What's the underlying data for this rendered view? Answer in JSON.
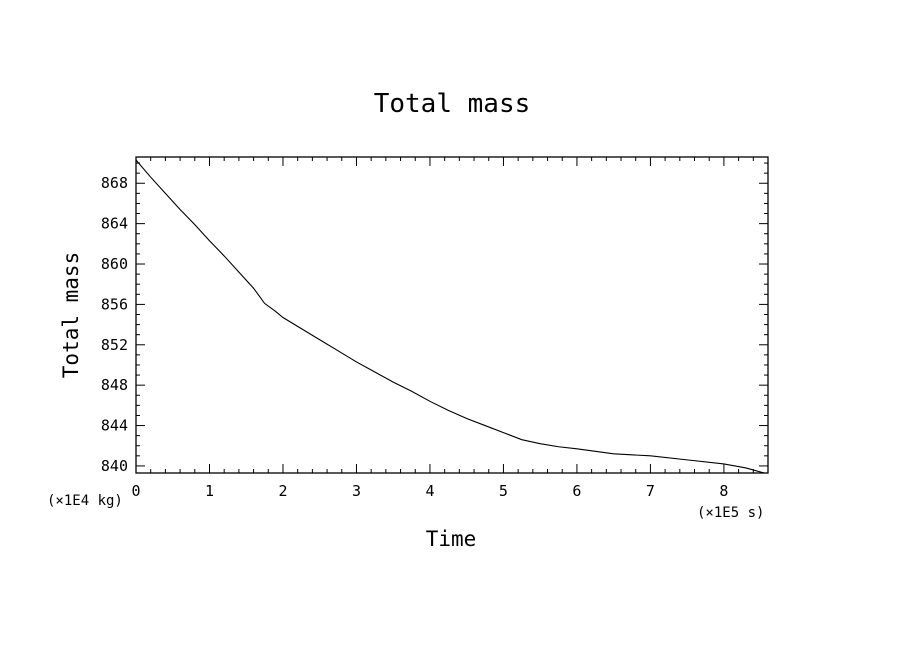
{
  "chart_data": {
    "type": "line",
    "title": "Total mass",
    "xlabel": "Time",
    "ylabel": "Total mass",
    "x_unit": "(×1E5 s)",
    "y_unit": "(×1E4 kg)",
    "xlim": [
      0,
      8.6
    ],
    "ylim": [
      839.3,
      870.6
    ],
    "x_ticks": [
      0,
      1,
      2,
      3,
      4,
      5,
      6,
      7,
      8
    ],
    "y_ticks": [
      840,
      844,
      848,
      852,
      856,
      860,
      864,
      868
    ],
    "grid": false,
    "series": [
      {
        "color": "#000000",
        "x": [
          0,
          0.2,
          0.4,
          0.6,
          0.8,
          1.0,
          1.2,
          1.4,
          1.6,
          1.75,
          1.9,
          2.0,
          2.25,
          2.5,
          2.75,
          3.0,
          3.25,
          3.5,
          3.75,
          4.0,
          4.25,
          4.5,
          4.75,
          5.0,
          5.25,
          5.5,
          5.75,
          6.0,
          6.5,
          7.0,
          7.5,
          8.0,
          8.3,
          8.55
        ],
        "y": [
          870.3,
          868.6,
          867.0,
          865.4,
          863.9,
          862.3,
          860.8,
          859.2,
          857.6,
          856.1,
          855.3,
          854.7,
          853.6,
          852.5,
          851.4,
          850.3,
          849.3,
          848.3,
          847.4,
          846.4,
          845.5,
          844.7,
          844.0,
          843.3,
          842.6,
          842.2,
          841.9,
          841.7,
          841.2,
          841.0,
          840.6,
          840.2,
          839.8,
          839.3
        ]
      }
    ]
  }
}
